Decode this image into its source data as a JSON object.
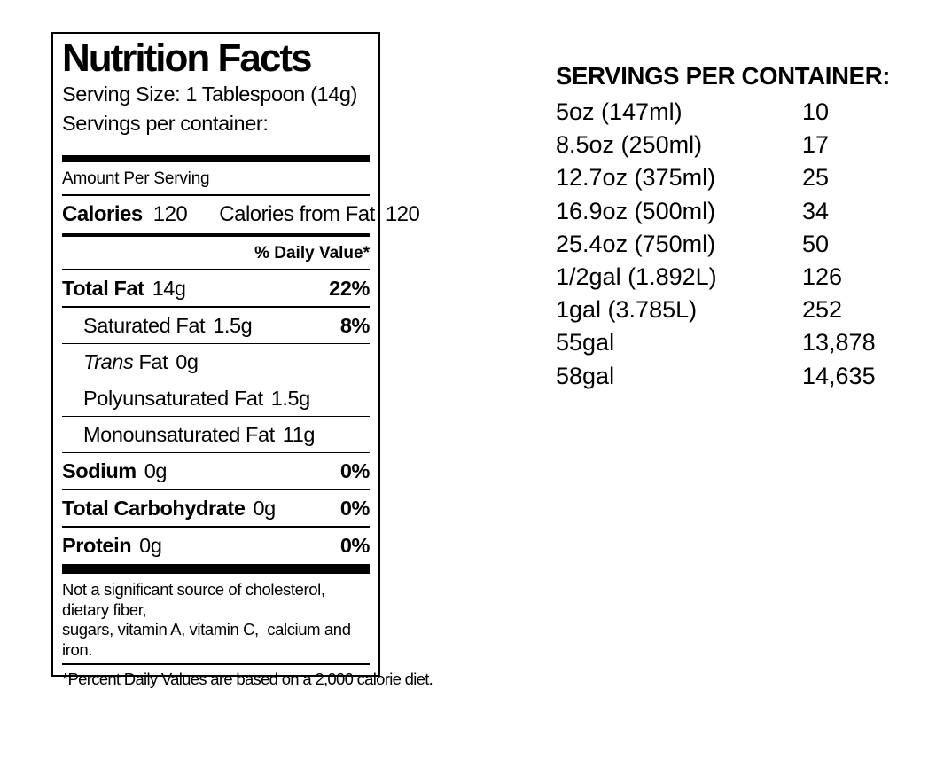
{
  "page": {
    "background": "#ffffff",
    "text_color": "#000000"
  },
  "nutrition_label": {
    "title": "Nutrition Facts",
    "serving_size": "Serving Size: 1 Tablespoon (14g)",
    "servings_per_container": "Servings per container:",
    "amount_per_serving": "Amount Per Serving",
    "calories": {
      "label": "Calories",
      "value": "120",
      "from_fat_label": "Calories from Fat",
      "from_fat_value": "120"
    },
    "daily_value_header": "% Daily Value*",
    "nutrients": [
      {
        "name": "Total Fat",
        "amount": "14g",
        "daily_value": "22%"
      },
      {
        "name": "Saturated Fat",
        "amount": "1.5g",
        "daily_value": "8%"
      },
      {
        "name_italic": "Trans ",
        "name": "Fat",
        "amount": "0g",
        "daily_value": ""
      },
      {
        "name": "Polyunsaturated Fat",
        "amount": "1.5g",
        "daily_value": ""
      },
      {
        "name": "Monounsaturated Fat",
        "amount": "11g",
        "daily_value": ""
      },
      {
        "name": "Sodium",
        "amount": "0g",
        "daily_value": "0%"
      },
      {
        "name": "Total Carbohydrate",
        "amount": "0g",
        "daily_value": "0%"
      },
      {
        "name": "Protein",
        "amount": "0g",
        "daily_value": "0%"
      }
    ],
    "footnote_line1": "Not a significant source of cholesterol, dietary fiber,",
    "footnote_line2": "sugars, vitamin A, vitamin C,  calcium and iron.",
    "percent_note": "*Percent Daily Values are based on a 2,000 calorie diet."
  },
  "servings_table": {
    "heading": "SERVINGS PER CONTAINER:",
    "rows": [
      {
        "size": "5oz (147ml)",
        "servings": "10"
      },
      {
        "size": "8.5oz (250ml)",
        "servings": "17"
      },
      {
        "size": "12.7oz (375ml)",
        "servings": "25"
      },
      {
        "size": "16.9oz (500ml)",
        "servings": "34"
      },
      {
        "size": "25.4oz (750ml)",
        "servings": "50"
      },
      {
        "size": "1/2gal (1.892L)",
        "servings": "126"
      },
      {
        "size": "1gal (3.785L)",
        "servings": "252"
      },
      {
        "size": "55gal",
        "servings": "13,878"
      },
      {
        "size": "58gal",
        "servings": "14,635"
      }
    ]
  }
}
